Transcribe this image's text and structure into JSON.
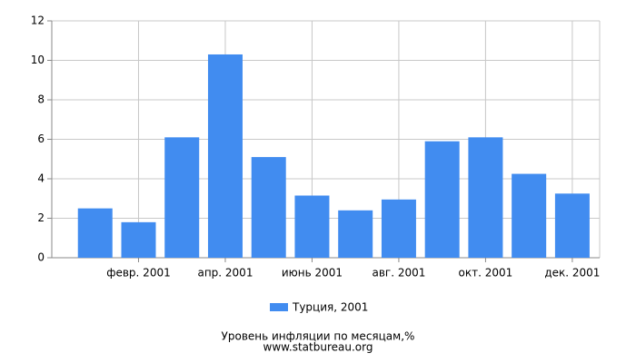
{
  "chart_data": {
    "type": "bar",
    "title": "Уровень инфляции по месяцам,%",
    "subtitle": "www.statbureau.org",
    "categories": [
      null,
      "февр. 2001",
      null,
      "апр. 2001",
      null,
      "июнь 2001",
      null,
      "авг. 2001",
      null,
      "окт. 2001",
      null,
      "дек. 2001"
    ],
    "series": [
      {
        "name": "Турция, 2001",
        "color": "#418cf0",
        "values": [
          2.5,
          1.8,
          6.1,
          10.3,
          5.1,
          3.15,
          2.4,
          2.95,
          5.9,
          6.1,
          4.25,
          3.25
        ]
      }
    ],
    "ylim": [
      0,
      12
    ],
    "yticks": [
      0,
      2,
      4,
      6,
      8,
      10,
      12
    ],
    "grid": true,
    "legend": "bottom"
  }
}
